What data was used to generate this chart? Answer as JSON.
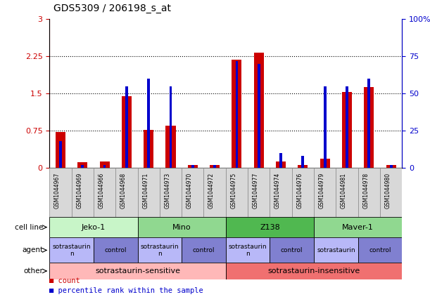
{
  "title": "GDS5309 / 206198_s_at",
  "samples": [
    "GSM1044967",
    "GSM1044969",
    "GSM1044966",
    "GSM1044968",
    "GSM1044971",
    "GSM1044973",
    "GSM1044970",
    "GSM1044972",
    "GSM1044975",
    "GSM1044977",
    "GSM1044974",
    "GSM1044976",
    "GSM1044979",
    "GSM1044981",
    "GSM1044978",
    "GSM1044980"
  ],
  "count_values": [
    0.72,
    0.12,
    0.13,
    1.45,
    0.76,
    0.85,
    0.05,
    0.05,
    2.18,
    2.32,
    0.13,
    0.05,
    0.19,
    1.53,
    1.63,
    0.06
  ],
  "percentile_values": [
    18,
    2,
    2,
    55,
    60,
    55,
    2,
    2,
    72,
    70,
    10,
    8,
    55,
    55,
    60,
    2
  ],
  "ylim_left": [
    0,
    3
  ],
  "ylim_right": [
    0,
    100
  ],
  "yticks_left": [
    0,
    0.75,
    1.5,
    2.25,
    3
  ],
  "yticks_right": [
    0,
    25,
    50,
    75,
    100
  ],
  "ytick_labels_left": [
    "0",
    "0.75",
    "1.5",
    "2.25",
    "3"
  ],
  "ytick_labels_right": [
    "0",
    "25",
    "50",
    "75",
    "100%"
  ],
  "cell_lines": [
    {
      "label": "Jeko-1",
      "start": 0,
      "end": 3,
      "color": "#c8f5c8"
    },
    {
      "label": "Mino",
      "start": 4,
      "end": 7,
      "color": "#90d890"
    },
    {
      "label": "Z138",
      "start": 8,
      "end": 11,
      "color": "#50b850"
    },
    {
      "label": "Maver-1",
      "start": 12,
      "end": 15,
      "color": "#90d890"
    }
  ],
  "agents": [
    {
      "label": "sotrastaurin\nn",
      "start": 0,
      "end": 1,
      "color": "#b8b8f8"
    },
    {
      "label": "control",
      "start": 2,
      "end": 3,
      "color": "#8080d0"
    },
    {
      "label": "sotrastaurin\nn",
      "start": 4,
      "end": 5,
      "color": "#b8b8f8"
    },
    {
      "label": "control",
      "start": 6,
      "end": 7,
      "color": "#8080d0"
    },
    {
      "label": "sotrastaurin\nn",
      "start": 8,
      "end": 9,
      "color": "#b8b8f8"
    },
    {
      "label": "control",
      "start": 10,
      "end": 11,
      "color": "#8080d0"
    },
    {
      "label": "sotrastaurin",
      "start": 12,
      "end": 13,
      "color": "#b8b8f8"
    },
    {
      "label": "control",
      "start": 14,
      "end": 15,
      "color": "#8080d0"
    }
  ],
  "others": [
    {
      "label": "sotrastaurin-sensitive",
      "start": 0,
      "end": 7,
      "color": "#ffb8b8"
    },
    {
      "label": "sotrastaurin-insensitive",
      "start": 8,
      "end": 15,
      "color": "#f07070"
    }
  ],
  "bar_color": "#cc0000",
  "percentile_color": "#0000cc",
  "bg_color": "#ffffff",
  "axis_color_left": "#cc0000",
  "axis_color_right": "#0000cc",
  "label_arrow_color": "#555555"
}
